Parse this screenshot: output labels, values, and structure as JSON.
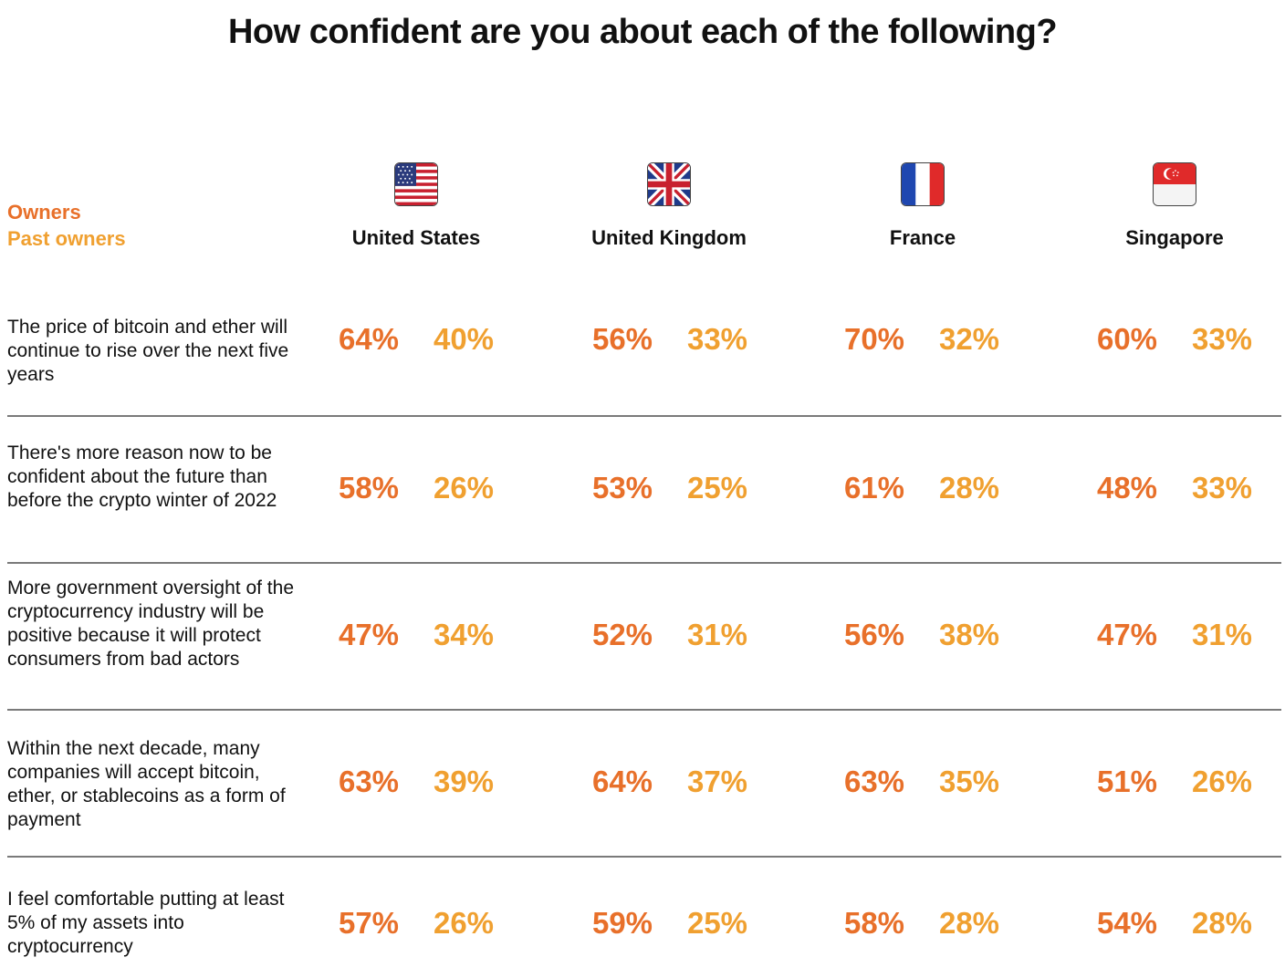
{
  "title": "How confident are you about each of the following?",
  "legend": [
    {
      "label": "Owners",
      "color": "#e8702a"
    },
    {
      "label": "Past owners",
      "color": "#f0a030"
    }
  ],
  "chart_data": {
    "type": "table",
    "title": "How confident are you about each of the following?",
    "columns": [
      "United States",
      "United Kingdom",
      "France",
      "Singapore"
    ],
    "series_names": [
      "Owners",
      "Past owners"
    ],
    "rows": [
      {
        "label": "The price of bitcoin and ether will continue to rise over the next five years",
        "values": [
          [
            "64%",
            "40%"
          ],
          [
            "56%",
            "33%"
          ],
          [
            "70%",
            "32%"
          ],
          [
            "60%",
            "33%"
          ]
        ]
      },
      {
        "label": "There's more reason now to be confident about the future than before the crypto winter of 2022",
        "values": [
          [
            "58%",
            "26%"
          ],
          [
            "53%",
            "25%"
          ],
          [
            "61%",
            "28%"
          ],
          [
            "48%",
            "33%"
          ]
        ]
      },
      {
        "label": "More government oversight of the cryptocurrency industry will be positive because it will protect consumers from bad actors",
        "values": [
          [
            "47%",
            "34%"
          ],
          [
            "52%",
            "31%"
          ],
          [
            "56%",
            "38%"
          ],
          [
            "47%",
            "31%"
          ]
        ]
      },
      {
        "label": "Within the next decade, many companies will accept bitcoin, ether, or stablecoins as a form of payment",
        "values": [
          [
            "63%",
            "39%"
          ],
          [
            "64%",
            "37%"
          ],
          [
            "63%",
            "35%"
          ],
          [
            "51%",
            "26%"
          ]
        ]
      },
      {
        "label": "I feel comfortable putting at least 5% of my assets into cryptocurrency",
        "values": [
          [
            "57%",
            "26%"
          ],
          [
            "59%",
            "25%"
          ],
          [
            "58%",
            "28%"
          ],
          [
            "54%",
            "28%"
          ]
        ]
      }
    ]
  },
  "flags": [
    "us-flag-icon",
    "uk-flag-icon",
    "france-flag-icon",
    "singapore-flag-icon"
  ]
}
